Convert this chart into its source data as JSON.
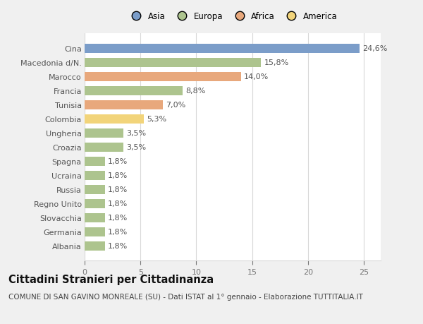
{
  "categories": [
    "Cina",
    "Macedonia d/N.",
    "Marocco",
    "Francia",
    "Tunisia",
    "Colombia",
    "Ungheria",
    "Croazia",
    "Spagna",
    "Ucraina",
    "Russia",
    "Regno Unito",
    "Slovacchia",
    "Germania",
    "Albania"
  ],
  "values": [
    24.6,
    15.8,
    14.0,
    8.8,
    7.0,
    5.3,
    3.5,
    3.5,
    1.8,
    1.8,
    1.8,
    1.8,
    1.8,
    1.8,
    1.8
  ],
  "labels": [
    "24,6%",
    "15,8%",
    "14,0%",
    "8,8%",
    "7,0%",
    "5,3%",
    "3,5%",
    "3,5%",
    "1,8%",
    "1,8%",
    "1,8%",
    "1,8%",
    "1,8%",
    "1,8%",
    "1,8%"
  ],
  "colors": [
    "#7b9dc9",
    "#adc48e",
    "#e8a87c",
    "#adc48e",
    "#e8a87c",
    "#f2d47a",
    "#adc48e",
    "#adc48e",
    "#adc48e",
    "#adc48e",
    "#adc48e",
    "#adc48e",
    "#adc48e",
    "#adc48e",
    "#adc48e"
  ],
  "legend_labels": [
    "Asia",
    "Europa",
    "Africa",
    "America"
  ],
  "legend_colors": [
    "#7b9dc9",
    "#adc48e",
    "#e8a87c",
    "#f2d47a"
  ],
  "title": "Cittadini Stranieri per Cittadinanza",
  "subtitle": "COMUNE DI SAN GAVINO MONREALE (SU) - Dati ISTAT al 1° gennaio - Elaborazione TUTTITALIA.IT",
  "xlim": [
    0,
    26.5
  ],
  "xticks": [
    0,
    5,
    10,
    15,
    20,
    25
  ],
  "bg_color": "#f0f0f0",
  "plot_bg_color": "#ffffff",
  "grid_color": "#d8d8d8",
  "bar_height": 0.65,
  "label_fontsize": 8,
  "ytick_fontsize": 8,
  "xtick_fontsize": 8,
  "title_fontsize": 10.5,
  "subtitle_fontsize": 7.5
}
